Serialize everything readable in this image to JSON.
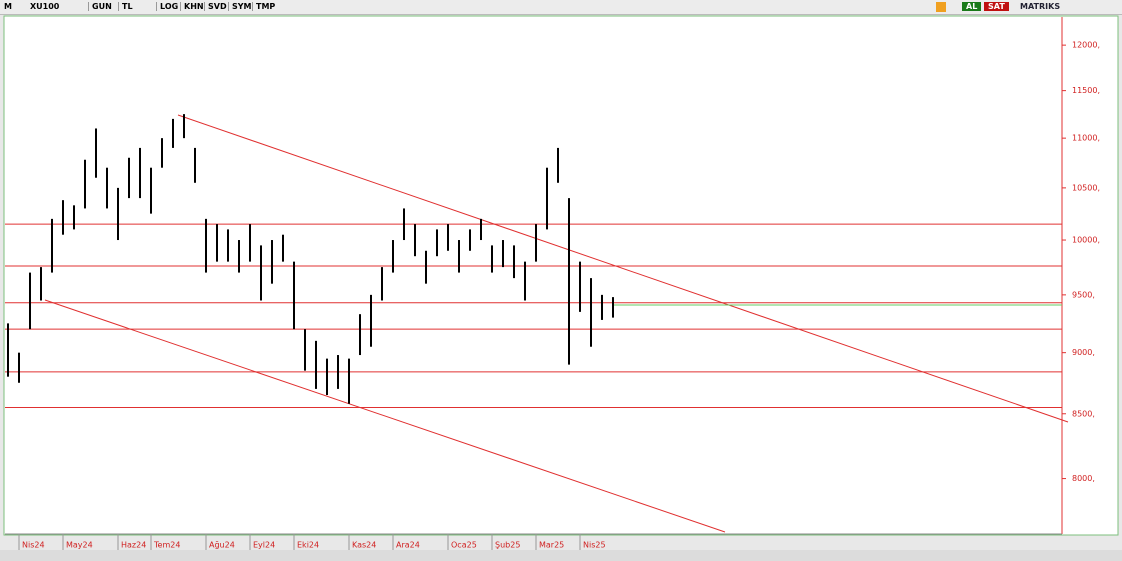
{
  "toolbar": {
    "menu": "M",
    "symbol": "XU100",
    "buttons": [
      "GUN",
      "TL",
      "LOG",
      "KHN",
      "SVD",
      "SYM",
      "TMP"
    ],
    "buy": "AL",
    "sell": "SAT",
    "brand": "MATRIKS"
  },
  "chart_data": {
    "type": "ohlc",
    "log_scale": true,
    "grid": false,
    "color": "#000000",
    "level_color": "#e03030",
    "last_color": "#66cc66",
    "ylim": [
      7610,
      12320
    ],
    "yticks": [
      {
        "value": 8000,
        "label": "8000,"
      },
      {
        "value": 8500,
        "label": "8500,"
      },
      {
        "value": 9000,
        "label": "9000,"
      },
      {
        "value": 9500,
        "label": "9500,"
      },
      {
        "value": 10000,
        "label": "10000,"
      },
      {
        "value": 10500,
        "label": "10500,"
      },
      {
        "value": 11000,
        "label": "11000,"
      },
      {
        "value": 11500,
        "label": "11500,"
      },
      {
        "value": 12000,
        "label": "12000,"
      }
    ],
    "categories": [
      null,
      "Nis24",
      null,
      null,
      null,
      "May24",
      null,
      null,
      null,
      null,
      "Haz24",
      null,
      null,
      "Tem24",
      null,
      null,
      null,
      null,
      "Ağu24",
      null,
      null,
      null,
      "Eyl24",
      null,
      null,
      null,
      "Eki24",
      null,
      null,
      null,
      null,
      "Kas24",
      null,
      null,
      null,
      "Ara24",
      null,
      null,
      null,
      null,
      "Oca25",
      null,
      null,
      null,
      "Şub25",
      null,
      null,
      null,
      "Mar25",
      null,
      null,
      null,
      "Nis25",
      null,
      null,
      null
    ],
    "high": [
      9250,
      9000,
      9700,
      9750,
      10200,
      10380,
      10330,
      10780,
      11100,
      10700,
      10500,
      10800,
      10900,
      10700,
      11000,
      11200,
      11250,
      10900,
      10200,
      10150,
      10100,
      10000,
      10150,
      9950,
      10000,
      10050,
      9800,
      9200,
      9100,
      8950,
      8980,
      8950,
      9330,
      9500,
      9750,
      10000,
      10300,
      10150,
      9900,
      10100,
      10150,
      10000,
      10100,
      10200,
      9950,
      10000,
      9950,
      9800,
      10150,
      10700,
      10900,
      10400,
      9800,
      9650,
      9500,
      9480
    ],
    "low": [
      8800,
      8750,
      9200,
      9450,
      9700,
      10050,
      10100,
      10300,
      10600,
      10300,
      10000,
      10400,
      10400,
      10250,
      10700,
      10900,
      11000,
      10550,
      9700,
      9800,
      9800,
      9700,
      9800,
      9450,
      9600,
      9800,
      9200,
      8850,
      8700,
      8650,
      8700,
      8580,
      8980,
      9050,
      9450,
      9700,
      10000,
      9850,
      9600,
      9850,
      9900,
      9700,
      9900,
      10000,
      9700,
      9750,
      9650,
      9450,
      9800,
      10100,
      10550,
      8900,
      9350,
      9050,
      9280,
      9300
    ],
    "levels": [
      10150,
      9760,
      9430,
      9200,
      8840,
      8550
    ],
    "last_level": 9410
  }
}
